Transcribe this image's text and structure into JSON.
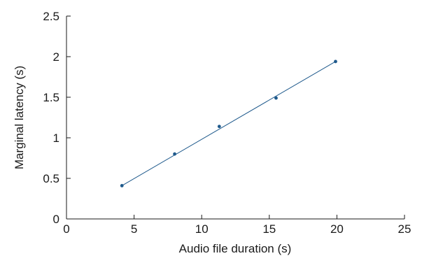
{
  "chart_data": {
    "type": "scatter",
    "title": "",
    "xlabel": "Audio file duration (s)",
    "ylabel": "Marginal latency (s)",
    "xlim": [
      0,
      25
    ],
    "ylim": [
      0,
      2.5
    ],
    "x_ticks": [
      "0",
      "5",
      "10",
      "15",
      "20",
      "25"
    ],
    "y_ticks": [
      "0",
      "0.5",
      "1",
      "1.5",
      "2",
      "2.5"
    ],
    "grid": false,
    "legend": "none",
    "series": [
      {
        "color": "#1f5a8c",
        "points": [
          {
            "x": 4.1,
            "y": 0.41
          },
          {
            "x": 8.0,
            "y": 0.8
          },
          {
            "x": 11.3,
            "y": 1.14
          },
          {
            "x": 15.5,
            "y": 1.49
          },
          {
            "x": 19.9,
            "y": 1.94
          }
        ]
      }
    ],
    "fit_line": {
      "color": "#1f5a8c",
      "from": {
        "x": 4.1,
        "y": 0.41
      },
      "to": {
        "x": 19.9,
        "y": 1.94
      }
    }
  }
}
